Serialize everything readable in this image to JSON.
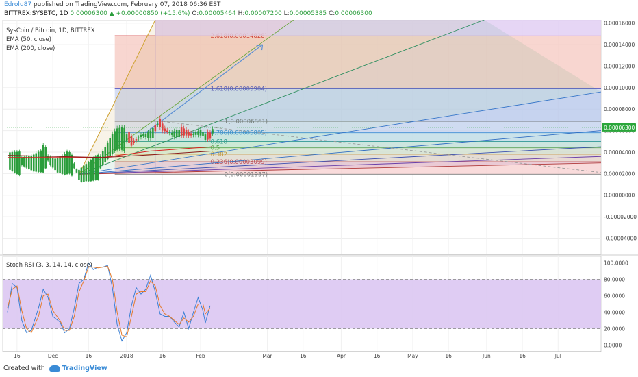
{
  "header": {
    "author": "Edrolu87",
    "published": "published on TradingView.com, February 07, 2018 06:36 EST",
    "symbol_line_prefix": "BITTREX:SYSBTC, 1D",
    "last": "0.00006300",
    "change": "+0.00000850 (+15.6%)",
    "open_k": "O:",
    "open": "0.00005464",
    "high_k": "H:",
    "high": "0.00007200",
    "low_k": "L:",
    "low": "0.00005385",
    "close_k": "C:",
    "close": "0.00006300"
  },
  "legend": {
    "title": "SysCoin / Bitcoin, 1D, BITTREX",
    "ema50": "EMA (50, close)",
    "ema200": "EMA (200, close)",
    "stoch": "Stoch RSI (3, 3, 14, 14, close)"
  },
  "footer": {
    "created_with": "Created with",
    "brand": "TradingView"
  },
  "colors": {
    "up": "#2a9d3b",
    "down": "#e04040",
    "accent": "#3a8bd6",
    "stoch_fill": "#dcc7f2",
    "price_badge": "#2aa63a"
  },
  "chart_data": {
    "type": "candlestick",
    "price_axis": {
      "ylim": [
        -5.5e-06,
        1.63e-05
      ],
      "ticks": [
        -4e-06,
        -2e-06,
        0,
        2e-06,
        4e-06,
        6e-06,
        8e-06,
        1e-05,
        1.2e-05,
        1.4e-05,
        1.6e-05
      ],
      "tick_labels": [
        "-0.00004000",
        "-0.00002000",
        "0.00000000",
        "0.00002000",
        "0.00004000",
        "0.00006000",
        "0.00008000",
        "0.00010000",
        "0.00012000",
        "0.00014000",
        "0.00016000"
      ],
      "last_price_label": "0.00006300",
      "last_price": 6.3e-06
    },
    "time_axis": {
      "labels": [
        "16",
        "Dec",
        "16",
        "2018",
        "16",
        "Feb",
        "Mar",
        "16",
        "Apr",
        "16",
        "May",
        "16",
        "Jun",
        "16",
        "Jul"
      ],
      "days": [
        -46,
        -31,
        -16,
        0,
        15,
        31,
        59,
        74,
        90,
        105,
        120,
        135,
        151,
        166,
        181
      ]
    },
    "fib_levels": [
      {
        "ratio": "0",
        "value": 1.94e-06,
        "label": "0(0.00001937)"
      },
      {
        "ratio": "0.236",
        "value": 3.1e-06,
        "label": "0.236(0.00003099)"
      },
      {
        "ratio": "0.382",
        "value": 3.81e-06,
        "label": "0.382"
      },
      {
        "ratio": "0.5",
        "value": 4.4e-06,
        "label": "0.5"
      },
      {
        "ratio": "0.618",
        "value": 4.98e-06,
        "label": "0.618"
      },
      {
        "ratio": "0.786",
        "value": 5.8e-06,
        "label": "0.786(0.00005805)"
      },
      {
        "ratio": "1",
        "value": 6.86e-06,
        "label": "1(0.00006861)"
      },
      {
        "ratio": "1.618",
        "value": 9.9e-06,
        "label": "1.618(0.00009904)"
      },
      {
        "ratio": "2.618",
        "value": 1.483e-05,
        "label": "2.618(0.00014828)"
      }
    ],
    "price_close": [
      {
        "d": -50,
        "v": 3.45e-06
      },
      {
        "d": -45,
        "v": 3.3e-06
      },
      {
        "d": -40,
        "v": 3.2e-06
      },
      {
        "d": -36,
        "v": 3.5e-06
      },
      {
        "d": -35,
        "v": 4e-06
      },
      {
        "d": -33,
        "v": 3.4e-06
      },
      {
        "d": -30,
        "v": 3e-06
      },
      {
        "d": -27,
        "v": 3.1e-06
      },
      {
        "d": -25,
        "v": 3.4e-06
      },
      {
        "d": -24,
        "v": 3.3e-06
      },
      {
        "d": -22,
        "v": 2.7e-06
      },
      {
        "d": -21,
        "v": 2.1e-06
      },
      {
        "d": -20,
        "v": 2e-06
      },
      {
        "d": -18,
        "v": 2.3e-06
      },
      {
        "d": -16,
        "v": 2.5e-06
      },
      {
        "d": -14,
        "v": 2.8e-06
      },
      {
        "d": -12,
        "v": 3e-06
      },
      {
        "d": -10,
        "v": 3.8e-06
      },
      {
        "d": -8,
        "v": 4.5e-06
      },
      {
        "d": -6,
        "v": 5.2e-06
      },
      {
        "d": -4,
        "v": 5.6e-06
      },
      {
        "d": -2,
        "v": 5.6e-06
      },
      {
        "d": 0,
        "v": 5.4e-06
      },
      {
        "d": 2,
        "v": 4.8e-06
      },
      {
        "d": 4,
        "v": 5.2e-06
      },
      {
        "d": 6,
        "v": 5.6e-06
      },
      {
        "d": 8,
        "v": 5.6e-06
      },
      {
        "d": 10,
        "v": 5.8e-06
      },
      {
        "d": 12,
        "v": 6.2e-06
      },
      {
        "d": 13,
        "v": 6.8e-06
      },
      {
        "d": 15,
        "v": 6.1e-06
      },
      {
        "d": 17,
        "v": 5.9e-06
      },
      {
        "d": 19,
        "v": 5.7e-06
      },
      {
        "d": 21,
        "v": 5.9e-06
      },
      {
        "d": 23,
        "v": 5.8e-06
      },
      {
        "d": 25,
        "v": 5.7e-06
      },
      {
        "d": 27,
        "v": 5.6e-06
      },
      {
        "d": 29,
        "v": 5.8e-06
      },
      {
        "d": 31,
        "v": 5.9e-06
      },
      {
        "d": 33,
        "v": 5.4e-06
      },
      {
        "d": 35,
        "v": 5.45e-06
      },
      {
        "d": 36,
        "v": 6.3e-06
      }
    ],
    "ema50": [
      {
        "d": -50,
        "v": 3.5e-06
      },
      {
        "d": -10,
        "v": 3.5e-06
      },
      {
        "d": 10,
        "v": 4.1e-06
      },
      {
        "d": 36,
        "v": 4.5e-06
      }
    ],
    "ema200": [
      {
        "d": -50,
        "v": 3.7e-06
      },
      {
        "d": -10,
        "v": 3.5e-06
      },
      {
        "d": 10,
        "v": 3.75e-06
      },
      {
        "d": 36,
        "v": 4.1e-06
      }
    ],
    "stoch_rsi": {
      "ylim": [
        -8,
        108
      ],
      "ticks": [
        0,
        20,
        40,
        60,
        80,
        100
      ],
      "tick_labels": [
        "0.0000",
        "20.0000",
        "40.0000",
        "60.0000",
        "80.0000",
        "100.0000"
      ],
      "band": [
        20,
        80
      ],
      "k": [
        {
          "d": -50,
          "v": 40
        },
        {
          "d": -48,
          "v": 75
        },
        {
          "d": -46,
          "v": 70
        },
        {
          "d": -44,
          "v": 30
        },
        {
          "d": -42,
          "v": 15
        },
        {
          "d": -40,
          "v": 18
        },
        {
          "d": -37,
          "v": 45
        },
        {
          "d": -35,
          "v": 68
        },
        {
          "d": -33,
          "v": 58
        },
        {
          "d": -31,
          "v": 35
        },
        {
          "d": -28,
          "v": 28
        },
        {
          "d": -26,
          "v": 15
        },
        {
          "d": -24,
          "v": 20
        },
        {
          "d": -22,
          "v": 45
        },
        {
          "d": -20,
          "v": 75
        },
        {
          "d": -18,
          "v": 80
        },
        {
          "d": -16,
          "v": 100
        },
        {
          "d": -14,
          "v": 92
        },
        {
          "d": -12,
          "v": 95
        },
        {
          "d": -10,
          "v": 95
        },
        {
          "d": -8,
          "v": 97
        },
        {
          "d": -6,
          "v": 70
        },
        {
          "d": -4,
          "v": 25
        },
        {
          "d": -2,
          "v": 5
        },
        {
          "d": 0,
          "v": 15
        },
        {
          "d": 2,
          "v": 48
        },
        {
          "d": 4,
          "v": 70
        },
        {
          "d": 6,
          "v": 62
        },
        {
          "d": 8,
          "v": 68
        },
        {
          "d": 10,
          "v": 85
        },
        {
          "d": 12,
          "v": 65
        },
        {
          "d": 14,
          "v": 38
        },
        {
          "d": 16,
          "v": 35
        },
        {
          "d": 18,
          "v": 35
        },
        {
          "d": 20,
          "v": 28
        },
        {
          "d": 22,
          "v": 22
        },
        {
          "d": 24,
          "v": 40
        },
        {
          "d": 26,
          "v": 20
        },
        {
          "d": 28,
          "v": 40
        },
        {
          "d": 30,
          "v": 58
        },
        {
          "d": 32,
          "v": 42
        },
        {
          "d": 33,
          "v": 27
        },
        {
          "d": 35,
          "v": 48
        }
      ],
      "d": [
        {
          "d": -50,
          "v": 45
        },
        {
          "d": -48,
          "v": 68
        },
        {
          "d": -46,
          "v": 72
        },
        {
          "d": -44,
          "v": 42
        },
        {
          "d": -42,
          "v": 20
        },
        {
          "d": -40,
          "v": 15
        },
        {
          "d": -37,
          "v": 35
        },
        {
          "d": -35,
          "v": 60
        },
        {
          "d": -33,
          "v": 62
        },
        {
          "d": -31,
          "v": 42
        },
        {
          "d": -28,
          "v": 30
        },
        {
          "d": -26,
          "v": 18
        },
        {
          "d": -24,
          "v": 18
        },
        {
          "d": -22,
          "v": 35
        },
        {
          "d": -20,
          "v": 65
        },
        {
          "d": -18,
          "v": 78
        },
        {
          "d": -16,
          "v": 95
        },
        {
          "d": -14,
          "v": 95
        },
        {
          "d": -12,
          "v": 94
        },
        {
          "d": -10,
          "v": 95
        },
        {
          "d": -8,
          "v": 96
        },
        {
          "d": -6,
          "v": 80
        },
        {
          "d": -4,
          "v": 40
        },
        {
          "d": -2,
          "v": 12
        },
        {
          "d": 0,
          "v": 10
        },
        {
          "d": 2,
          "v": 35
        },
        {
          "d": 4,
          "v": 62
        },
        {
          "d": 6,
          "v": 65
        },
        {
          "d": 8,
          "v": 65
        },
        {
          "d": 10,
          "v": 78
        },
        {
          "d": 12,
          "v": 72
        },
        {
          "d": 14,
          "v": 48
        },
        {
          "d": 16,
          "v": 38
        },
        {
          "d": 18,
          "v": 35
        },
        {
          "d": 20,
          "v": 30
        },
        {
          "d": 22,
          "v": 25
        },
        {
          "d": 24,
          "v": 33
        },
        {
          "d": 26,
          "v": 28
        },
        {
          "d": 28,
          "v": 35
        },
        {
          "d": 30,
          "v": 50
        },
        {
          "d": 32,
          "v": 50
        },
        {
          "d": 33,
          "v": 38
        },
        {
          "d": 35,
          "v": 45
        }
      ]
    }
  }
}
